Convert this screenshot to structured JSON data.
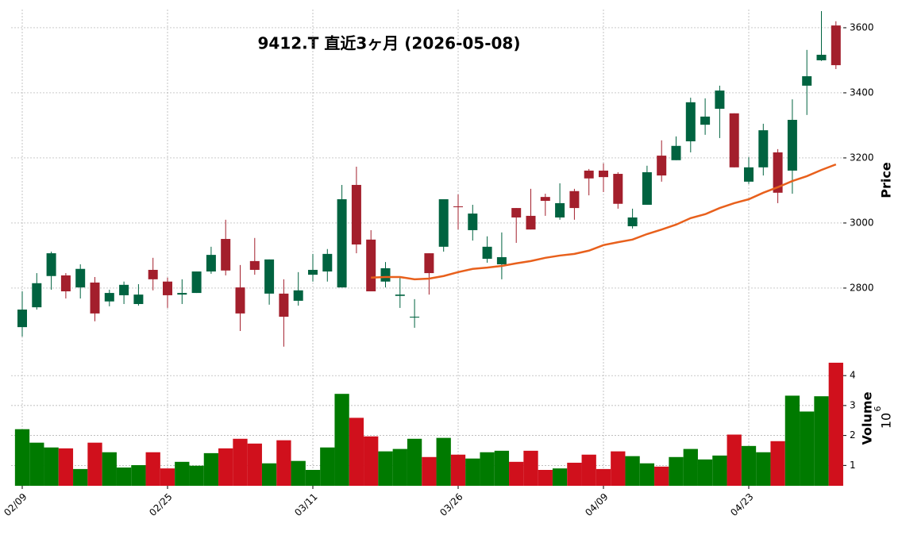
{
  "chart_data": [
    {
      "type": "candlestick",
      "title": "9412.T  直近3ヶ月  (2026-05-08)",
      "ylabel": "Price",
      "open": [
        2680,
        2741,
        2837,
        2839,
        2802,
        2817,
        2759,
        2778,
        2751,
        2856,
        2820,
        2780,
        2785,
        2851,
        2951,
        2802,
        2883,
        2783,
        2783,
        2761,
        2841,
        2851,
        2802,
        3117,
        2949,
        2820,
        2776,
        2710,
        2907,
        2927,
        3051,
        2978,
        2890,
        2873,
        3046,
        3022,
        3080,
        3017,
        3098,
        3161,
        3161,
        3151,
        2990,
        3056,
        3207,
        3193,
        3251,
        3302,
        3351,
        3337,
        3127,
        3171,
        3217,
        3161,
        3422,
        3500,
        3607
      ],
      "high": [
        2790,
        2846,
        2912,
        2846,
        2873,
        2834,
        2795,
        2820,
        2812,
        2893,
        2832,
        2827,
        2851,
        2927,
        3010,
        2871,
        2954,
        2888,
        2827,
        2849,
        2905,
        2920,
        3117,
        3173,
        2978,
        2880,
        2832,
        2766,
        2907,
        3073,
        3088,
        3056,
        2959,
        2971,
        3046,
        3105,
        3090,
        3122,
        3105,
        3166,
        3183,
        3156,
        3044,
        3176,
        3254,
        3266,
        3385,
        3383,
        3422,
        3337,
        3202,
        3305,
        3227,
        3380,
        3532,
        3651,
        3620
      ],
      "low": [
        2651,
        2734,
        2795,
        2768,
        2768,
        2698,
        2744,
        2751,
        2746,
        2793,
        2739,
        2751,
        2785,
        2844,
        2839,
        2668,
        2841,
        2749,
        2620,
        2746,
        2820,
        2820,
        2802,
        2907,
        2790,
        2802,
        2739,
        2678,
        2780,
        2912,
        2980,
        2946,
        2878,
        2827,
        2939,
        2980,
        3022,
        3010,
        3010,
        3085,
        3095,
        3044,
        2983,
        3056,
        3127,
        3193,
        3217,
        3271,
        3261,
        3171,
        3120,
        3146,
        3061,
        3090,
        3332,
        3498,
        3473
      ],
      "close": [
        2734,
        2815,
        2907,
        2790,
        2859,
        2722,
        2785,
        2810,
        2780,
        2827,
        2778,
        2785,
        2851,
        2902,
        2854,
        2722,
        2856,
        2888,
        2712,
        2793,
        2856,
        2905,
        3073,
        2934,
        2790,
        2861,
        2780,
        2712,
        2846,
        3073,
        3049,
        3029,
        2927,
        2895,
        3017,
        2980,
        3068,
        3061,
        3046,
        3137,
        3141,
        3059,
        3017,
        3156,
        3146,
        3237,
        3371,
        3327,
        3407,
        3171,
        3171,
        3285,
        3093,
        3317,
        3451,
        3517,
        3485
      ],
      "ma_values": [
        null,
        null,
        null,
        null,
        null,
        null,
        null,
        null,
        null,
        null,
        null,
        null,
        null,
        null,
        null,
        null,
        null,
        null,
        null,
        null,
        null,
        null,
        null,
        null,
        2832,
        2834,
        2834,
        2827,
        2829,
        2837,
        2849,
        2859,
        2863,
        2868,
        2876,
        2883,
        2893,
        2900,
        2905,
        2915,
        2932,
        2941,
        2949,
        2966,
        2980,
        2995,
        3015,
        3027,
        3046,
        3061,
        3073,
        3093,
        3110,
        3129,
        3144,
        3163,
        3180
      ],
      "ma_color": "#e8601c",
      "up_color": "#006340",
      "down_color": "#a31f2c",
      "ylim": [
        2612,
        3656
      ],
      "yticks": [
        2800,
        3000,
        3200,
        3400,
        3600
      ],
      "grid": true
    },
    {
      "type": "volume",
      "ylabel": "Volume",
      "offset_base": "10",
      "offset_exponent": "6",
      "categories": [
        "02/09",
        null,
        null,
        null,
        null,
        null,
        null,
        null,
        null,
        null,
        "02/25",
        null,
        null,
        null,
        null,
        null,
        null,
        null,
        null,
        null,
        "03/11",
        null,
        null,
        null,
        null,
        null,
        null,
        null,
        null,
        null,
        "03/26",
        null,
        null,
        null,
        null,
        null,
        null,
        null,
        null,
        null,
        "04/09",
        null,
        null,
        null,
        null,
        null,
        null,
        null,
        null,
        null,
        "04/23",
        null,
        null,
        null,
        null,
        null,
        null
      ],
      "values": [
        2.21,
        1.76,
        1.6,
        1.57,
        0.88,
        1.76,
        1.44,
        0.93,
        1.01,
        1.44,
        0.9,
        1.12,
        0.99,
        1.41,
        1.57,
        1.89,
        1.73,
        1.07,
        1.84,
        1.15,
        0.85,
        1.6,
        3.39,
        2.59,
        1.97,
        1.47,
        1.55,
        1.89,
        1.28,
        1.92,
        1.36,
        1.23,
        1.44,
        1.49,
        1.12,
        1.49,
        0.85,
        0.9,
        1.09,
        1.36,
        0.88,
        1.47,
        1.31,
        1.07,
        0.96,
        1.28,
        1.55,
        1.2,
        1.33,
        2.03,
        1.65,
        1.44,
        1.81,
        3.33,
        2.8,
        3.31,
        4.43
      ],
      "up_color": "#007a00",
      "down_color": "#d0101c",
      "ylim": [
        0.32,
        4.8
      ],
      "yticks": [
        1,
        2,
        3,
        4
      ],
      "grid": true
    }
  ]
}
